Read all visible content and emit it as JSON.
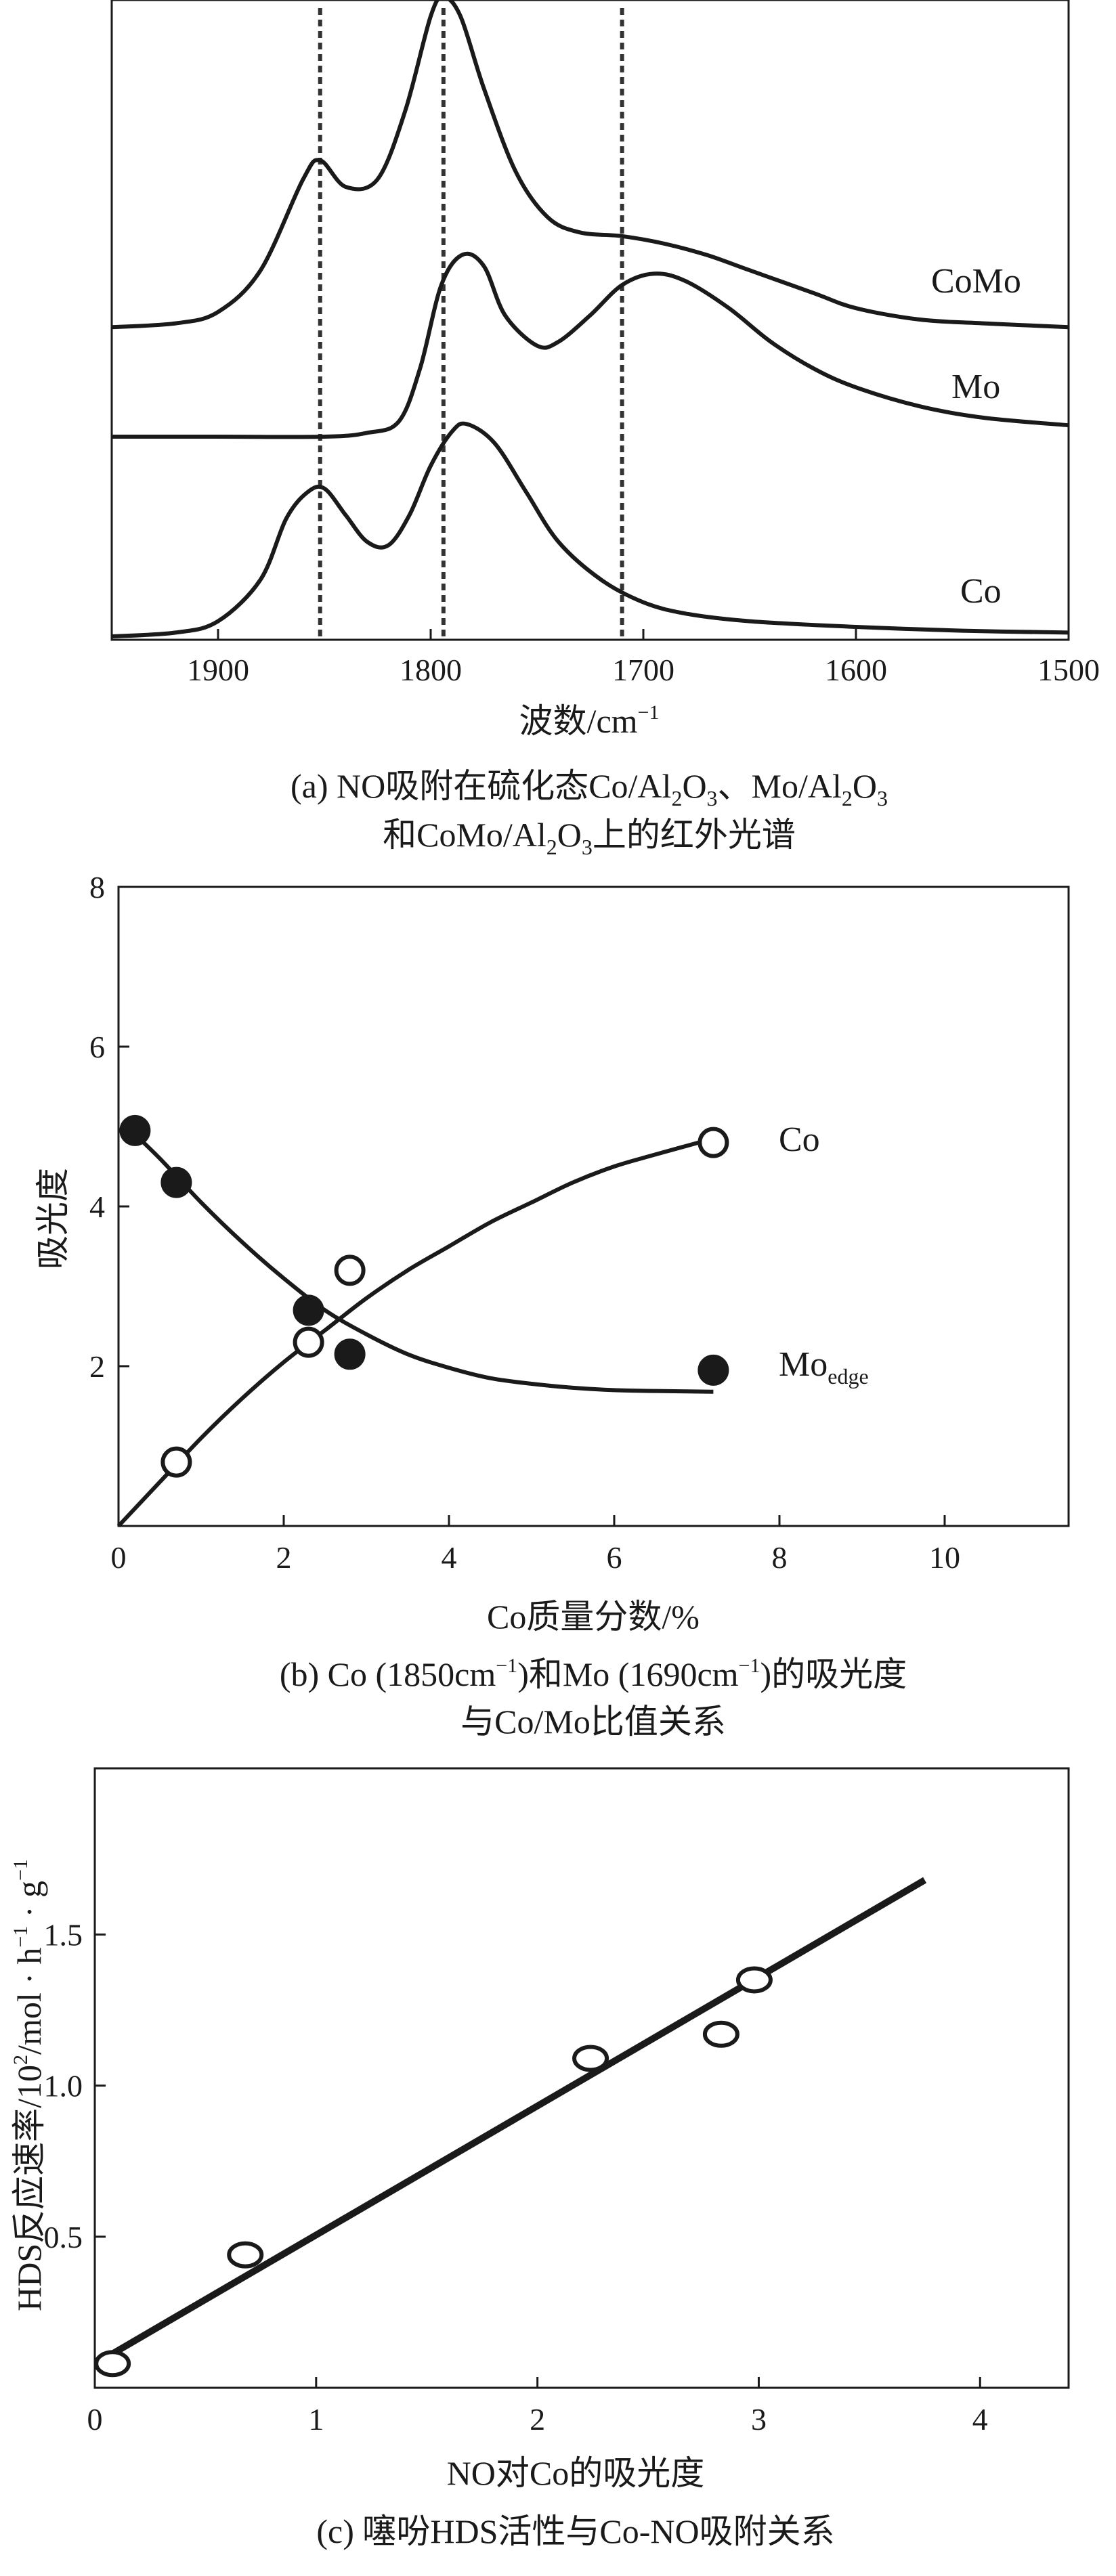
{
  "chart_data": [
    {
      "type": "line",
      "panel": "a",
      "xlabel": "波数/cm",
      "xlabel_sup": "−1",
      "xlim": [
        1950,
        1500
      ],
      "x_ticks": [
        "1900",
        "1800",
        "1700",
        "1600",
        "1500"
      ],
      "vertical_reference_lines": [
        1852,
        1794,
        1710
      ],
      "series": [
        {
          "name": "CoMo",
          "x": [
            1950,
            1920,
            1900,
            1880,
            1860,
            1852,
            1840,
            1825,
            1812,
            1800,
            1794,
            1786,
            1775,
            1760,
            1745,
            1730,
            1710,
            1690,
            1670,
            1650,
            1620,
            1600,
            1570,
            1540,
            1500
          ],
          "y": [
            0.03,
            0.04,
            0.07,
            0.18,
            0.42,
            0.47,
            0.4,
            0.42,
            0.6,
            0.85,
            0.9,
            0.85,
            0.66,
            0.44,
            0.32,
            0.28,
            0.27,
            0.25,
            0.22,
            0.18,
            0.12,
            0.08,
            0.05,
            0.04,
            0.03
          ]
        },
        {
          "name": "Mo",
          "x": [
            1950,
            1900,
            1850,
            1830,
            1815,
            1805,
            1795,
            1785,
            1775,
            1765,
            1750,
            1740,
            1725,
            1710,
            1695,
            1680,
            1660,
            1640,
            1620,
            1600,
            1570,
            1540,
            1500
          ],
          "y": [
            0.0,
            0.0,
            0.0,
            0.01,
            0.04,
            0.18,
            0.4,
            0.48,
            0.45,
            0.32,
            0.24,
            0.25,
            0.32,
            0.4,
            0.43,
            0.41,
            0.34,
            0.25,
            0.18,
            0.13,
            0.08,
            0.05,
            0.03
          ]
        },
        {
          "name": "Co",
          "x": [
            1950,
            1920,
            1900,
            1880,
            1868,
            1858,
            1850,
            1840,
            1830,
            1820,
            1810,
            1800,
            1790,
            1783,
            1770,
            1755,
            1740,
            1720,
            1700,
            1680,
            1650,
            1600,
            1550,
            1500
          ],
          "y": [
            0.0,
            0.01,
            0.04,
            0.15,
            0.31,
            0.38,
            0.39,
            0.32,
            0.25,
            0.24,
            0.32,
            0.45,
            0.54,
            0.56,
            0.51,
            0.38,
            0.25,
            0.15,
            0.09,
            0.06,
            0.04,
            0.025,
            0.015,
            0.01
          ]
        }
      ],
      "caption_parts": [
        "(a) NO吸附在硫化态Co/Al",
        "2",
        "O",
        "3",
        "、Mo/Al",
        "2",
        "O",
        "3",
        "和CoMo/Al",
        "2",
        "O",
        "3",
        "上的红外光谱"
      ]
    },
    {
      "type": "scatter",
      "panel": "b",
      "xlabel": "Co质量分数/%",
      "ylabel": "吸光度",
      "xlim": [
        0,
        11.5
      ],
      "ylim": [
        0,
        8
      ],
      "x_ticks": [
        "0",
        "2",
        "4",
        "6",
        "8",
        "10"
      ],
      "y_ticks": [
        "2",
        "4",
        "6",
        "8"
      ],
      "series": [
        {
          "name": "Co",
          "marker": "open-circle",
          "label": "Co",
          "points": [
            [
              0.7,
              0.8
            ],
            [
              2.3,
              2.3
            ],
            [
              2.8,
              3.2
            ],
            [
              7.2,
              4.8
            ]
          ],
          "fit": [
            [
              0,
              0
            ],
            [
              0.5,
              0.55
            ],
            [
              1,
              1.1
            ],
            [
              1.5,
              1.6
            ],
            [
              2,
              2.05
            ],
            [
              2.5,
              2.45
            ],
            [
              3,
              2.85
            ],
            [
              3.5,
              3.2
            ],
            [
              4,
              3.5
            ],
            [
              4.5,
              3.8
            ],
            [
              5,
              4.05
            ],
            [
              5.5,
              4.3
            ],
            [
              6,
              4.5
            ],
            [
              6.5,
              4.65
            ],
            [
              7.2,
              4.85
            ]
          ]
        },
        {
          "name": "Moedge",
          "marker": "filled-circle",
          "label_main": "Mo",
          "label_sub": "edge",
          "points": [
            [
              0.2,
              4.95
            ],
            [
              0.7,
              4.3
            ],
            [
              2.3,
              2.7
            ],
            [
              2.8,
              2.15
            ],
            [
              7.2,
              1.95
            ]
          ],
          "fit": [
            [
              0.1,
              5.0
            ],
            [
              0.5,
              4.6
            ],
            [
              1,
              4.05
            ],
            [
              1.5,
              3.55
            ],
            [
              2,
              3.1
            ],
            [
              2.5,
              2.7
            ],
            [
              3,
              2.4
            ],
            [
              3.5,
              2.15
            ],
            [
              4,
              1.98
            ],
            [
              4.5,
              1.85
            ],
            [
              5,
              1.78
            ],
            [
              5.5,
              1.73
            ],
            [
              6,
              1.7
            ],
            [
              6.5,
              1.69
            ],
            [
              7.2,
              1.68
            ]
          ]
        }
      ],
      "caption_parts": [
        "(b) Co (1850cm",
        "−1",
        ")和Mo (1690cm",
        "−1",
        ")的吸光度"
      ],
      "caption_line2": "与Co/Mo比值关系"
    },
    {
      "type": "scatter",
      "panel": "c",
      "xlabel": "NO对Co的吸光度",
      "ylabel_parts": [
        "HDS反应速率/10",
        "2",
        "/mol · h",
        "−1",
        " · g",
        "−1"
      ],
      "xlim": [
        0,
        4.4
      ],
      "ylim": [
        0,
        2.05
      ],
      "x_ticks": [
        "0",
        "1",
        "2",
        "3",
        "4"
      ],
      "y_ticks": [
        "0.5",
        "1.0",
        "1.5"
      ],
      "series": [
        {
          "name": "data",
          "marker": "open-circle",
          "points": [
            [
              0.08,
              0.08
            ],
            [
              0.68,
              0.44
            ],
            [
              2.24,
              1.09
            ],
            [
              2.83,
              1.17
            ],
            [
              2.98,
              1.35
            ]
          ],
          "fit": [
            [
              0.05,
              0.1
            ],
            [
              3.75,
              1.68
            ]
          ]
        }
      ],
      "caption_parts": [
        "(c) 噻吩HDS活性与Co-NO吸附关系"
      ]
    }
  ]
}
